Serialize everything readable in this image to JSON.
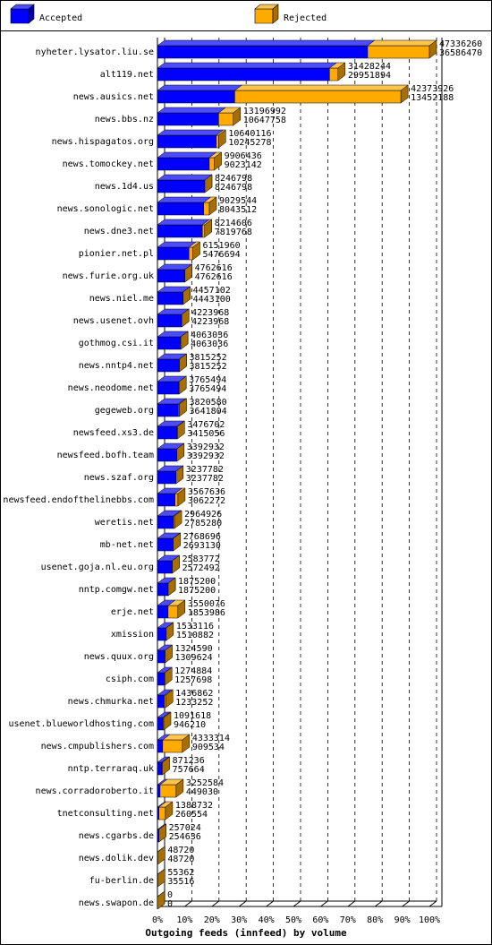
{
  "chart_data": {
    "type": "hbar3d",
    "title": "Outgoing feeds (innfeed) by volume",
    "categories": [
      "nyheter.lysator.liu.se",
      "alt119.net",
      "news.ausics.net",
      "news.bbs.nz",
      "news.hispagatos.org",
      "news.tomockey.net",
      "news.1d4.us",
      "news.sonologic.net",
      "news.dne3.net",
      "pionier.net.pl",
      "news.furie.org.uk",
      "news.niel.me",
      "news.usenet.ovh",
      "gothmog.csi.it",
      "news.nntp4.net",
      "news.neodome.net",
      "gegeweb.org",
      "newsfeed.xs3.de",
      "newsfeed.bofh.team",
      "news.szaf.org",
      "newsfeed.endofthelinebbs.com",
      "weretis.net",
      "mb-net.net",
      "usenet.goja.nl.eu.org",
      "nntp.comgw.net",
      "erje.net",
      "xmission",
      "news.quux.org",
      "csiph.com",
      "news.chmurka.net",
      "usenet.blueworldhosting.com",
      "news.cmpublishers.com",
      "nntp.terraraq.uk",
      "news.corradoroberto.it",
      "tnetconsulting.net",
      "news.cgarbs.de",
      "news.dolik.dev",
      "fu-berlin.de",
      "news.swapon.de"
    ],
    "totals": [
      47336260,
      31428244,
      42373926,
      13196992,
      10640116,
      9906436,
      8246798,
      9029544,
      8214606,
      6151960,
      4762616,
      4457102,
      4223968,
      4063036,
      3815252,
      3765494,
      3820580,
      3476702,
      3392932,
      3237782,
      3567636,
      2964926,
      2768696,
      2583772,
      1875200,
      3550076,
      1533116,
      1324590,
      1274884,
      1436862,
      1091618,
      4333314,
      871236,
      3252584,
      1388732,
      257024,
      48720,
      55362,
      0
    ],
    "series": [
      {
        "name": "Accepted",
        "color": "#0000ff",
        "values": [
          36586470,
          29951894,
          13452188,
          10647758,
          10245278,
          9023142,
          8246798,
          8043512,
          7819768,
          5476694,
          4762616,
          4443100,
          4223968,
          4063036,
          3815252,
          3765494,
          3641804,
          3415056,
          3392932,
          3237782,
          3062272,
          2785280,
          2693130,
          2572492,
          1875200,
          1853986,
          1510882,
          1309624,
          1257698,
          1233252,
          946210,
          909534,
          757664,
          449030,
          260554,
          254636,
          48720,
          35516,
          0
        ]
      },
      {
        "name": "Rejected",
        "color": "#ffaa00",
        "values": [
          10749790,
          1476350,
          28921738,
          2549234,
          394838,
          883294,
          0,
          986032,
          394838,
          675266,
          0,
          14002,
          0,
          0,
          0,
          0,
          178776,
          61646,
          0,
          0,
          505364,
          179646,
          75566,
          11280,
          0,
          1696090,
          22234,
          14966,
          17186,
          203610,
          145408,
          3423780,
          113572,
          2803554,
          1128178,
          2388,
          0,
          19846,
          0
        ]
      }
    ],
    "xlim": [
      0,
      47336260
    ],
    "xticks": [
      {
        "value": 0,
        "label": "0%"
      },
      {
        "value": 4733626,
        "label": "10%"
      },
      {
        "value": 9467252,
        "label": "20%"
      },
      {
        "value": 14200878,
        "label": "30%"
      },
      {
        "value": 18934504,
        "label": "40%"
      },
      {
        "value": 23668130,
        "label": "50%"
      },
      {
        "value": 28401756,
        "label": "60%"
      },
      {
        "value": 33135382,
        "label": "70%"
      },
      {
        "value": 37869008,
        "label": "80%"
      },
      {
        "value": 42602634,
        "label": "90%"
      },
      {
        "value": 47336260,
        "label": "100%"
      }
    ],
    "grid": true,
    "legend": "top"
  }
}
